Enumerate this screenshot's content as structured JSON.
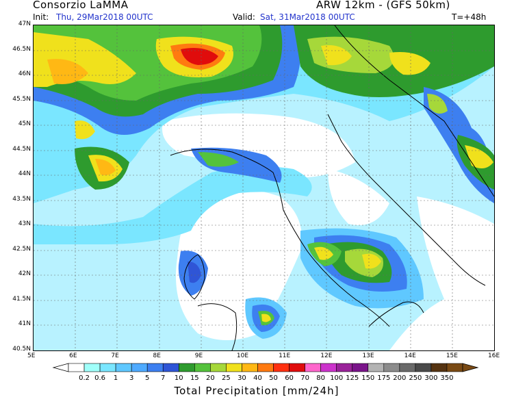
{
  "header": {
    "org": "Consorzio LaMMA",
    "model": "ARW 12km - (GFS 50km)",
    "init_label": "Init:",
    "init_value": "Thu, 29Mar2018 00UTC",
    "valid_label": "Valid:",
    "valid_value": "Sat, 31Mar2018 00UTC",
    "lead": "T=+48h"
  },
  "map": {
    "lat_labels": [
      "47N",
      "46.5N",
      "46N",
      "45.5N",
      "45N",
      "44.5N",
      "44N",
      "43.5N",
      "43N",
      "42.5N",
      "42N",
      "41.5N",
      "41N",
      "40.5N"
    ],
    "lon_labels": [
      "5E",
      "6E",
      "7E",
      "8E",
      "9E",
      "10E",
      "11E",
      "12E",
      "13E",
      "14E",
      "15E",
      "16E"
    ]
  },
  "colorbar": {
    "title": "Total Precipitation [mm/24h]",
    "ticks": [
      "0.2",
      "0.6",
      "1",
      "3",
      "5",
      "7",
      "10",
      "15",
      "20",
      "25",
      "30",
      "40",
      "50",
      "60",
      "70",
      "80",
      "100",
      "125",
      "150",
      "175",
      "200",
      "250",
      "300",
      "350"
    ],
    "colors": [
      "#ffffff",
      "#a0fffa",
      "#7ae6ff",
      "#5fc8ff",
      "#4eaaff",
      "#3d7ff0",
      "#2f55d6",
      "#2e9b2e",
      "#54c23c",
      "#a6d83a",
      "#f0e11c",
      "#ffb814",
      "#ff7a10",
      "#ff3010",
      "#e00c0c",
      "#ff66cc",
      "#cc33cc",
      "#992299",
      "#7a148a",
      "#b3b3b3",
      "#8c8c8c",
      "#6a6a6a",
      "#4a4a4a",
      "#553311",
      "#7a4a14"
    ]
  }
}
